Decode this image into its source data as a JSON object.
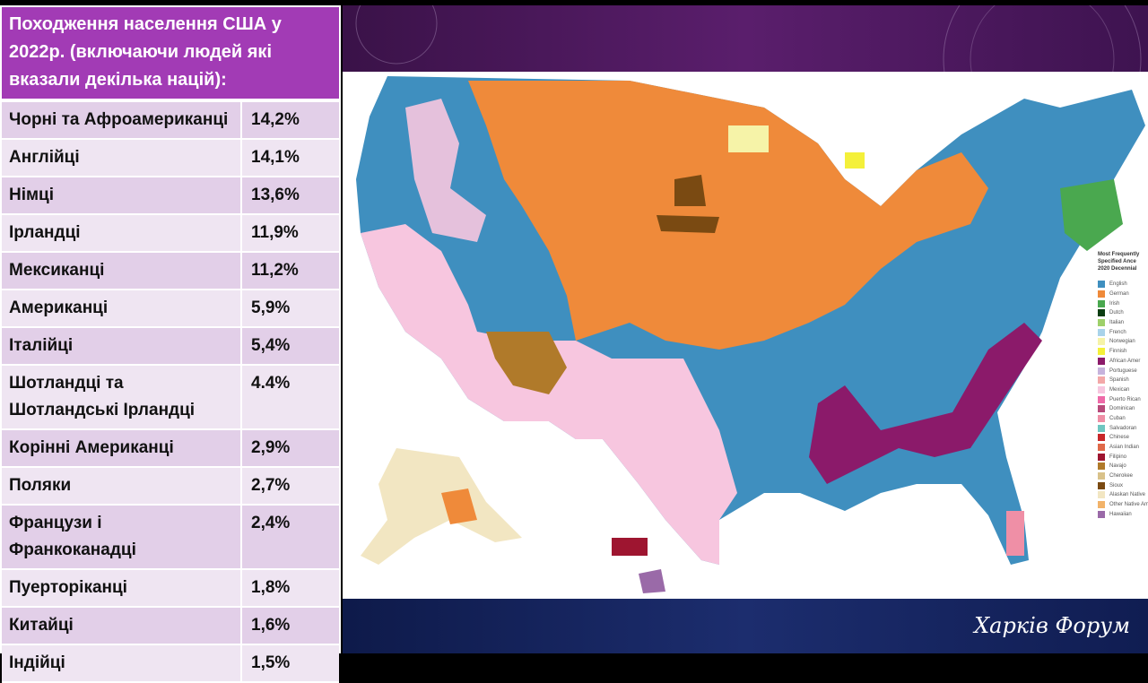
{
  "title": "Походження населення США у 2022р. (включаючи людей які вказали декілька націй):",
  "rows": [
    {
      "name": "Чорні та Афроамериканці",
      "value": "14,2%"
    },
    {
      "name": "Англійці",
      "value": "14,1%"
    },
    {
      "name": "Німці",
      "value": "13,6%"
    },
    {
      "name": "Ірландці",
      "value": "11,9%"
    },
    {
      "name": "Мексиканці",
      "value": "11,2%"
    },
    {
      "name": "Американці",
      "value": "5,9%"
    },
    {
      "name": "Італійці",
      "value": "5,4%"
    },
    {
      "name": "Шотландці та Шотландські Ірландці",
      "value": "4.4%"
    },
    {
      "name": "Корінні Американці",
      "value": "2,9%"
    },
    {
      "name": "Поляки",
      "value": "2,7%"
    },
    {
      "name": "Французи і Франкоканадці",
      "value": "2,4%"
    },
    {
      "name": "Пуерторіканці",
      "value": "1,8%"
    },
    {
      "name": "Китайці",
      "value": "1,6%"
    },
    {
      "name": "Індійці",
      "value": "1,5%"
    }
  ],
  "map": {
    "legend_title": [
      "Most Frequently",
      "Specified Ance",
      "2020 Decennial"
    ],
    "legend": [
      {
        "label": "English",
        "color": "#3f8fbf"
      },
      {
        "label": "German",
        "color": "#ef8a3a"
      },
      {
        "label": "Irish",
        "color": "#4aa84f"
      },
      {
        "label": "Dutch",
        "color": "#0b3d12"
      },
      {
        "label": "Italian",
        "color": "#9ed06a"
      },
      {
        "label": "French",
        "color": "#a9d3ea"
      },
      {
        "label": "Norwegian",
        "color": "#f6f3a8"
      },
      {
        "label": "Finnish",
        "color": "#f4f03a"
      },
      {
        "label": "African Amer",
        "color": "#8b1a6a"
      },
      {
        "label": "Portuguese",
        "color": "#c6b3dc"
      },
      {
        "label": "Spanish",
        "color": "#f3a8a8"
      },
      {
        "label": "Mexican",
        "color": "#f7c6df"
      },
      {
        "label": "Puerto Rican",
        "color": "#ee6aa8"
      },
      {
        "label": "Dominican",
        "color": "#b84a7a"
      },
      {
        "label": "Cuban",
        "color": "#ef8fa6"
      },
      {
        "label": "Salvadoran",
        "color": "#6fc6c0"
      },
      {
        "label": "Chinese",
        "color": "#c8272a"
      },
      {
        "label": "Asian Indian",
        "color": "#e06a4a"
      },
      {
        "label": "Filipino",
        "color": "#9e1530"
      },
      {
        "label": "Navajo",
        "color": "#b07a2a"
      },
      {
        "label": "Cherokee",
        "color": "#d9c28a"
      },
      {
        "label": "Sioux",
        "color": "#7a4a12"
      },
      {
        "label": "Alaskan Native",
        "color": "#f2e6c2"
      },
      {
        "label": "Other Native American",
        "color": "#f2b36a"
      },
      {
        "label": "Hawaiian",
        "color": "#9a6aa8"
      }
    ]
  },
  "brand": "Харків Форум"
}
